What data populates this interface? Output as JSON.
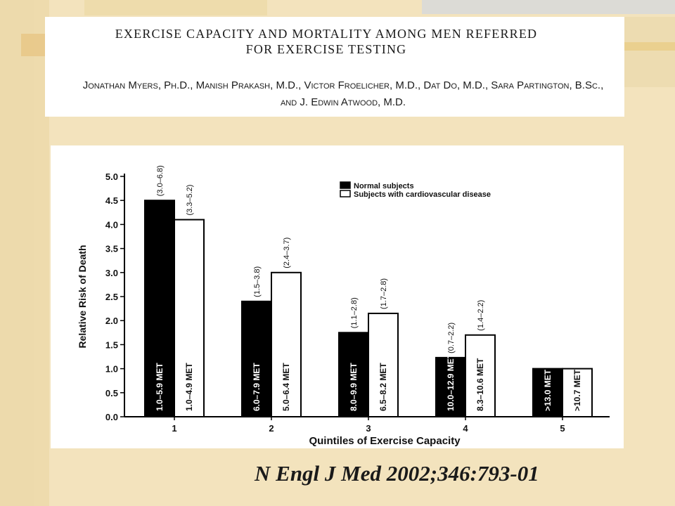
{
  "slide": {
    "paper_title_lines": [
      "EXERCISE CAPACITY AND MORTALITY AMONG MEN REFERRED",
      "FOR EXERCISE TESTING"
    ],
    "author_lines": [
      "Jonathan Myers, Ph.D., Manish Prakash, M.D., Victor Froelicher, M.D., Dat Do, M.D., Sara Partington, B.Sc.,",
      "and J. Edwin Atwood, M.D."
    ],
    "citation": "N Engl J Med 2002;346:793-01",
    "colors": {
      "background": "#f3e3bd",
      "panel": "#ffffff",
      "normal_bar": "#000000",
      "cvd_bar": "#ffffff"
    }
  },
  "chart_data": {
    "type": "bar",
    "categories": [
      "1",
      "2",
      "3",
      "4",
      "5"
    ],
    "xlabel": "Quintiles of Exercise Capacity",
    "ylabel": "Relative Risk of Death",
    "ylim": [
      0,
      5.0
    ],
    "yticks": [
      "0.0",
      "0.5",
      "1.0",
      "1.5",
      "2.0",
      "2.5",
      "3.0",
      "3.5",
      "4.0",
      "4.5",
      "5.0"
    ],
    "legend_position": "top-right",
    "series": [
      {
        "name": "Normal subjects",
        "color": "#000000",
        "values": [
          4.5,
          2.4,
          1.75,
          1.23,
          1.0
        ],
        "bar_labels": [
          "1.0–5.9 MET",
          "6.0–7.9 MET",
          "8.0–9.9 MET",
          "10.0–12.9 MET",
          ">13.0 MET"
        ],
        "ci_labels": [
          "(3.0–6.8)",
          "(1.5–3.8)",
          "(1.1–2.8)",
          "(0.7–2.2)",
          ""
        ]
      },
      {
        "name": "Subjects with cardiovascular disease",
        "color": "#ffffff",
        "values": [
          4.1,
          3.0,
          2.15,
          1.7,
          1.0
        ],
        "bar_labels": [
          "1.0–4.9 MET",
          "5.0–6.4 MET",
          "6.5–8.2 MET",
          "8.3–10.6 MET",
          ">10.7 MET"
        ],
        "ci_labels": [
          "(3.3–5.2)",
          "(2.4–3.7)",
          "(1.7–2.8)",
          "(1.4–2.2)",
          ""
        ]
      }
    ]
  }
}
